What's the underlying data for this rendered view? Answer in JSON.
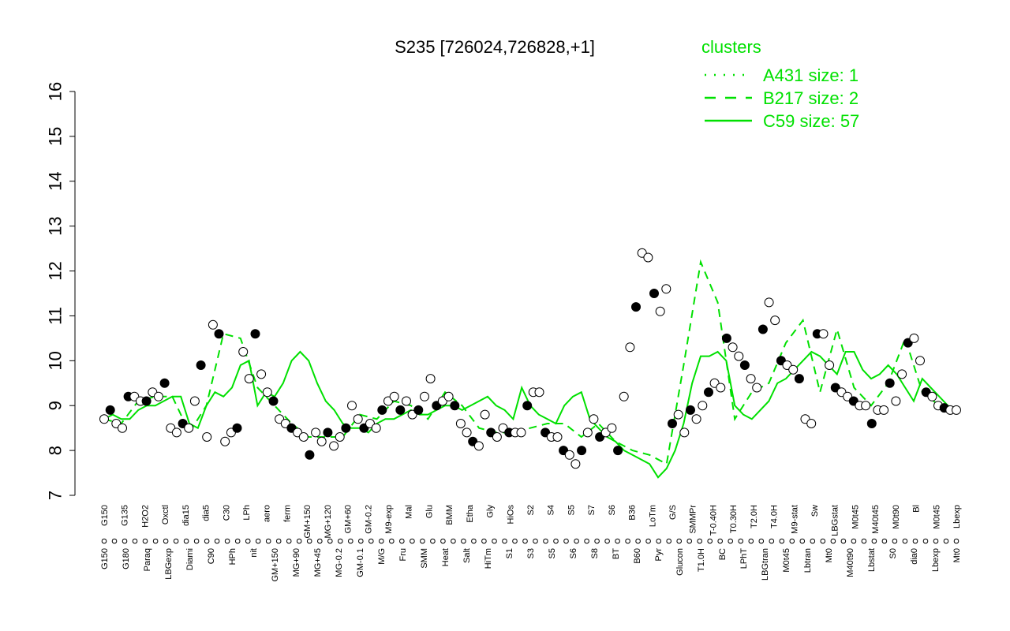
{
  "chart_data": {
    "type": "line",
    "title": "S235 [726024,726828,+1]",
    "xlabel": "",
    "ylabel": "",
    "ylim": [
      7,
      16
    ],
    "yticks": [
      7,
      8,
      9,
      10,
      11,
      12,
      13,
      14,
      15,
      16
    ],
    "grid": false,
    "legend": {
      "title": "clusters",
      "placement": "top-right",
      "color": "#00e000",
      "entries": [
        {
          "label": "A431 size: 1",
          "style": "dotted"
        },
        {
          "label": "B217 size: 2",
          "style": "dashed"
        },
        {
          "label": "C59 size: 57",
          "style": "solid"
        }
      ]
    },
    "categories_top": [
      "G150",
      "G135",
      "H2O2",
      "Oxctl",
      "dia15",
      "dia5",
      "C30",
      "LPh",
      "aero",
      "ferm",
      "GM+150",
      "MG+120",
      "GM+60",
      "GM-0.2",
      "M9-exp",
      "Mal",
      "Glu",
      "BMM",
      "Etha",
      "Gly",
      "HiOs",
      "S2",
      "S4",
      "S5",
      "S7",
      "S6",
      "B36",
      "LoTm",
      "G/S",
      "SMMPr",
      "T-0.40H",
      "T0.30H",
      "T2.0H",
      "T4.0H",
      "M9-stat",
      "Sw",
      "LBGstat",
      "M0t45",
      "M40t45",
      "M0t90",
      "Bl",
      "M0t45",
      "Lbexp"
    ],
    "categories_bottom": [
      "G150",
      "G180",
      "Paraq",
      "LBGexp",
      "Diami",
      "C90",
      "HPh",
      "nit",
      "GM+150",
      "MG+90",
      "MG+45",
      "MG-0.2",
      "GM-0.1",
      "M/G",
      "Fru",
      "SMM",
      "Heat",
      "Salt",
      "HiTm",
      "S1",
      "S3",
      "S5",
      "S6",
      "S8",
      "BT",
      "B60",
      "Pyr",
      "Glucon",
      "T1.0H",
      "BC",
      "LPhT",
      "LBGtran",
      "M0t45",
      "Lbtran",
      "Mt0",
      "M40t90",
      "Lbstat",
      "S0",
      "dia0",
      "Lbexp",
      "Mt0"
    ],
    "series": [
      {
        "name": "C59 size: 57",
        "style": "solid",
        "color": "#00e000",
        "x": [
          0.0,
          0.01,
          0.02,
          0.03,
          0.04,
          0.05,
          0.06,
          0.07,
          0.08,
          0.09,
          0.1,
          0.11,
          0.12,
          0.13,
          0.14,
          0.15,
          0.16,
          0.17,
          0.18,
          0.19,
          0.2,
          0.21,
          0.22,
          0.23,
          0.24,
          0.25,
          0.26,
          0.27,
          0.28,
          0.29,
          0.3,
          0.31,
          0.32,
          0.33,
          0.34,
          0.35,
          0.36,
          0.37,
          0.38,
          0.39,
          0.4,
          0.41,
          0.42,
          0.43,
          0.44,
          0.45,
          0.46,
          0.47,
          0.48,
          0.49,
          0.5,
          0.51,
          0.52,
          0.53,
          0.54,
          0.55,
          0.56,
          0.57,
          0.58,
          0.59,
          0.6,
          0.61,
          0.62,
          0.63,
          0.64,
          0.65,
          0.66,
          0.67,
          0.68,
          0.69,
          0.7,
          0.71,
          0.72,
          0.73,
          0.74,
          0.75,
          0.76,
          0.77,
          0.78,
          0.79,
          0.8,
          0.81,
          0.82,
          0.83,
          0.84,
          0.85,
          0.86,
          0.87,
          0.88,
          0.89,
          0.9,
          0.91,
          0.92,
          0.93,
          0.94,
          0.95,
          0.96,
          0.97,
          0.98,
          0.99,
          1.0
        ],
        "values": [
          8.7,
          8.8,
          8.7,
          8.7,
          8.9,
          9.0,
          9.0,
          9.1,
          9.2,
          9.2,
          8.6,
          8.5,
          9.0,
          9.3,
          9.2,
          9.4,
          9.9,
          10.0,
          9.0,
          9.3,
          9.2,
          9.5,
          10.0,
          10.2,
          10.0,
          9.5,
          9.1,
          8.9,
          8.6,
          8.5,
          8.5,
          8.4,
          8.6,
          8.7,
          8.7,
          8.8,
          8.9,
          8.8,
          8.8,
          8.9,
          9.0,
          9.0,
          8.9,
          9.0,
          9.1,
          9.2,
          9.0,
          8.9,
          8.7,
          9.4,
          9.0,
          8.8,
          8.7,
          8.6,
          9.0,
          9.2,
          9.3,
          8.7,
          8.5,
          8.3,
          8.2,
          8.0,
          7.9,
          7.8,
          7.7,
          7.4,
          7.6,
          8.0,
          8.6,
          9.5,
          10.1,
          10.1,
          10.2,
          10.0,
          9.0,
          8.8,
          8.7,
          8.9,
          9.1,
          9.5,
          9.6,
          9.8,
          10.0,
          10.2,
          10.1,
          9.9,
          9.7,
          10.2,
          10.2,
          9.8,
          9.6,
          9.7,
          9.9,
          9.7,
          9.4,
          9.1,
          9.6,
          9.4,
          9.2,
          9.0,
          8.9
        ]
      },
      {
        "name": "B217 size: 2",
        "style": "dashed",
        "color": "#00e000",
        "x": [
          0.0,
          0.02,
          0.04,
          0.06,
          0.08,
          0.1,
          0.12,
          0.14,
          0.16,
          0.18,
          0.2,
          0.22,
          0.24,
          0.26,
          0.28,
          0.3,
          0.32,
          0.34,
          0.36,
          0.38,
          0.4,
          0.42,
          0.44,
          0.46,
          0.48,
          0.5,
          0.52,
          0.54,
          0.56,
          0.58,
          0.6,
          0.62,
          0.64,
          0.66,
          0.68,
          0.7,
          0.72,
          0.74,
          0.76,
          0.78,
          0.8,
          0.82,
          0.84,
          0.86,
          0.88,
          0.9,
          0.92,
          0.94,
          0.96,
          0.98,
          1.0
        ],
        "values": [
          8.7,
          8.6,
          9.1,
          9.2,
          9.2,
          8.4,
          9.0,
          10.6,
          10.5,
          9.4,
          9.0,
          8.6,
          8.3,
          8.3,
          8.3,
          8.8,
          8.7,
          9.1,
          9.0,
          8.7,
          9.3,
          9.0,
          8.5,
          8.4,
          8.4,
          8.5,
          8.6,
          8.6,
          8.3,
          8.6,
          8.2,
          8.0,
          7.9,
          7.7,
          9.9,
          12.2,
          11.3,
          8.7,
          9.3,
          9.5,
          10.4,
          10.9,
          9.3,
          10.7,
          9.4,
          9.0,
          9.5,
          10.5,
          9.3,
          9.0,
          8.9
        ]
      }
    ],
    "points": [
      8.7,
      8.9,
      8.6,
      8.5,
      9.2,
      9.2,
      9.1,
      9.1,
      9.3,
      9.2,
      9.5,
      8.5,
      8.4,
      8.6,
      8.5,
      9.1,
      9.9,
      8.3,
      10.8,
      10.6,
      8.2,
      8.4,
      8.5,
      10.2,
      9.6,
      10.6,
      9.7,
      9.3,
      9.1,
      8.7,
      8.6,
      8.5,
      8.4,
      8.3,
      7.9,
      8.4,
      8.2,
      8.4,
      8.1,
      8.3,
      8.5,
      9.0,
      8.7,
      8.5,
      8.6,
      8.5,
      8.9,
      9.1,
      9.2,
      8.9,
      9.1,
      8.8,
      8.9,
      9.2,
      9.6,
      9.0,
      9.1,
      9.2,
      9.0,
      8.6,
      8.4,
      8.2,
      8.1,
      8.8,
      8.4,
      8.3,
      8.5,
      8.4,
      8.4,
      8.4,
      9.0,
      9.3,
      9.3,
      8.4,
      8.3,
      8.3,
      8.0,
      7.9,
      7.7,
      8.0,
      8.4,
      8.7,
      8.3,
      8.4,
      8.5,
      8.0,
      9.2,
      10.3,
      11.2,
      12.4,
      12.3,
      11.5,
      11.1,
      11.6,
      8.6,
      8.8,
      8.4,
      8.9,
      8.7,
      9.0,
      9.3,
      9.5,
      9.4,
      10.5,
      10.3,
      10.1,
      9.9,
      9.6,
      9.4,
      10.7,
      11.3,
      10.9,
      10.0,
      9.9,
      9.8,
      9.6,
      8.7,
      8.6,
      10.6,
      10.6,
      9.9,
      9.4,
      9.3,
      9.2,
      9.1,
      9.0,
      9.0,
      8.6,
      8.9,
      8.9,
      9.5,
      9.1,
      9.7,
      10.4,
      10.5,
      10.0,
      9.3,
      9.2,
      9.0,
      8.95,
      8.9,
      8.9
    ]
  },
  "colors": {
    "accent": "#00e000",
    "axis": "#000000"
  }
}
